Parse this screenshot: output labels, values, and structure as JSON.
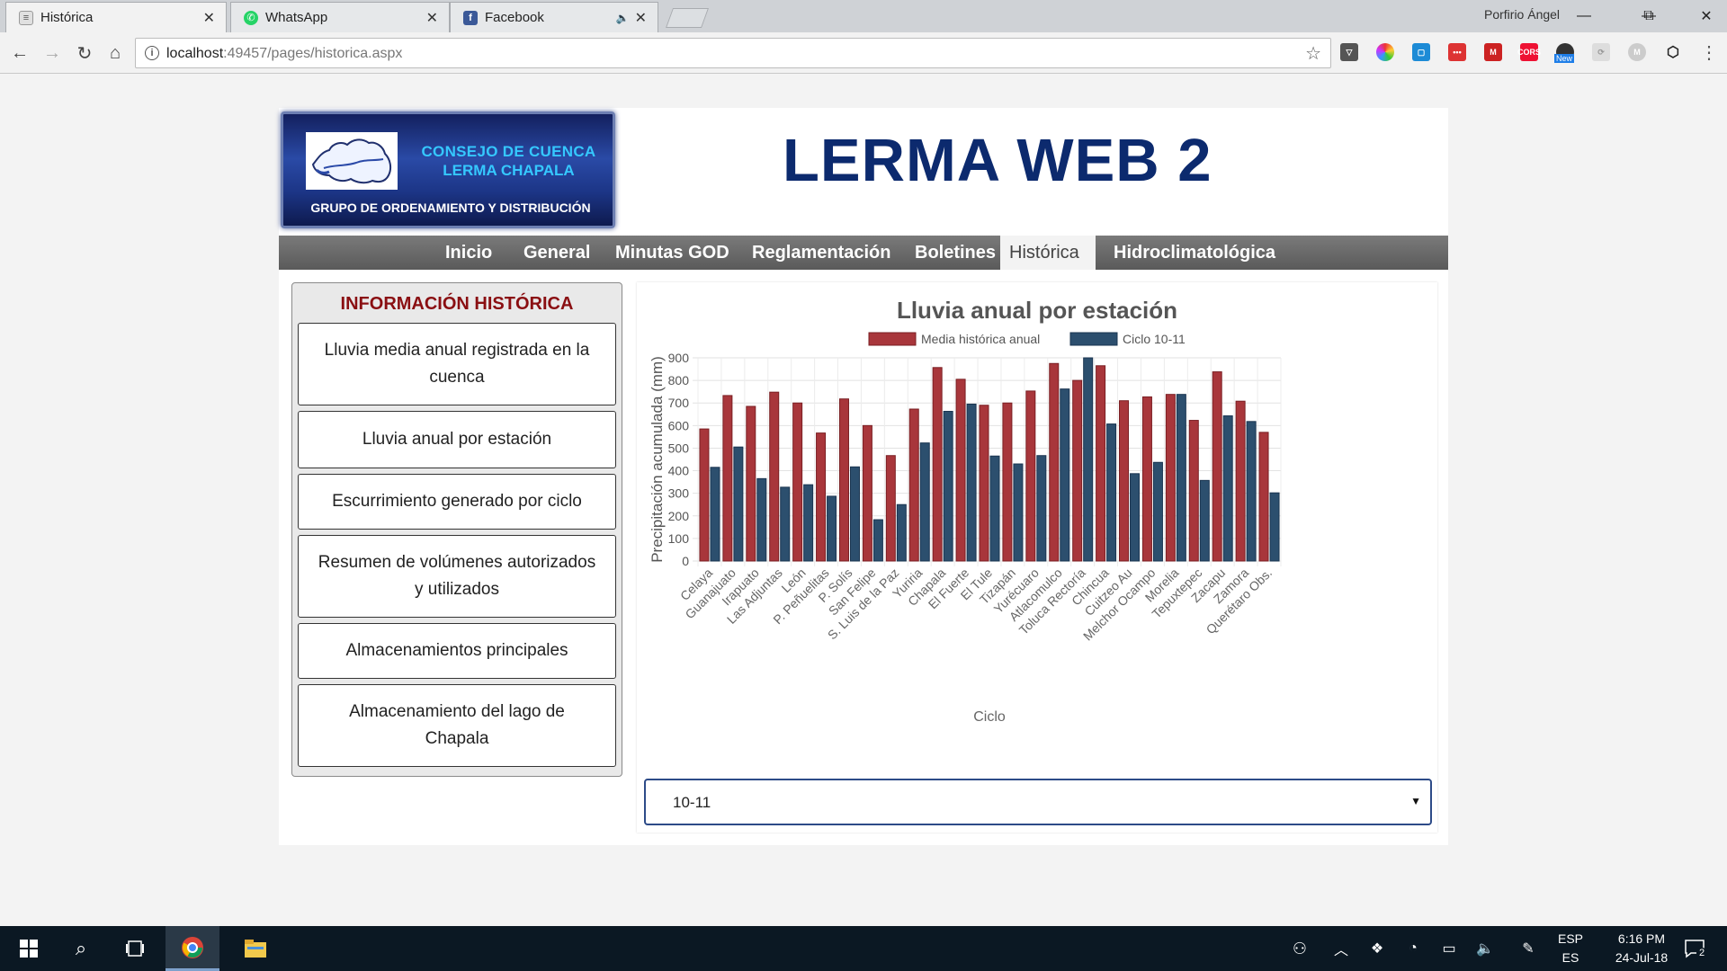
{
  "browser": {
    "tabs": [
      {
        "title": "Histórica",
        "icon": "page-icon",
        "active": true
      },
      {
        "title": "WhatsApp",
        "icon": "whatsapp-icon",
        "active": false
      },
      {
        "title": "Facebook",
        "icon": "facebook-icon",
        "active": false,
        "muted": true
      }
    ],
    "profile_name": "Porfirio Ángel",
    "url_host": "localhost",
    "url_rest": ":49457/pages/historica.aspx",
    "ext_new_badge": "New"
  },
  "header": {
    "logo_line1": "CONSEJO DE CUENCA",
    "logo_line2": "LERMA CHAPALA",
    "logo_line3": "GRUPO DE ORDENAMIENTO Y DISTRIBUCIÓN",
    "site_title": "LERMA WEB 2"
  },
  "menu": {
    "items": [
      "Inicio",
      "General",
      "Minutas GOD",
      "Reglamentación",
      "Boletines",
      "Histórica",
      "Hidroclimatológica"
    ],
    "active": "Histórica"
  },
  "sidebar": {
    "title": "INFORMACIÓN HISTÓRICA",
    "items": [
      "Lluvia media anual registrada en la cuenca",
      "Lluvia anual por estación",
      "Escurrimiento generado por ciclo",
      "Resumen de volúmenes autorizados y utilizados",
      "Almacenamientos principales",
      "Almacenamiento del lago de Chapala"
    ]
  },
  "chart_data": {
    "type": "bar",
    "title": "Lluvia anual por estación",
    "xlabel": "Ciclo",
    "ylabel": "Precipitación acumulada (mm)",
    "ylim": [
      0,
      900
    ],
    "yticks": [
      0,
      100,
      200,
      300,
      400,
      500,
      600,
      700,
      800,
      900
    ],
    "legend_position": "top",
    "grid": true,
    "categories": [
      "Celaya",
      "Guanajuato",
      "Irapuato",
      "Las Adjuntas",
      "León",
      "P. Peñuelitas",
      "P. Solís",
      "San Felipe",
      "S. Luis de la Paz",
      "Yuriria",
      "Chapala",
      "El Fuerte",
      "El Tule",
      "Tizapán",
      "Yurécuaro",
      "Atlacomulco",
      "Toluca Rectoría",
      "Chincua",
      "Cuitzeo Au",
      "Melchor Ocampo",
      "Morelia",
      "Tepuxtepec",
      "Zacapu",
      "Zamora",
      "Querétaro Obs."
    ],
    "series": [
      {
        "name": "Media histórica anual",
        "color": "#a8363b",
        "values": [
          585,
          733,
          685,
          748,
          700,
          567,
          718,
          600,
          467,
          673,
          857,
          805,
          690,
          700,
          753,
          875,
          800,
          865,
          710,
          727,
          738,
          623,
          838,
          708,
          570
        ]
      },
      {
        "name": "Ciclo 10-11",
        "color": "#2c4f6e",
        "values": [
          415,
          505,
          365,
          327,
          338,
          287,
          417,
          183,
          250,
          523,
          663,
          695,
          465,
          430,
          467,
          762,
          900,
          607,
          387,
          437,
          738,
          357,
          643,
          618,
          302
        ]
      }
    ]
  },
  "select": {
    "value": "10-11"
  },
  "taskbar": {
    "lang_top": "ESP",
    "lang_bottom": "ES",
    "time": "6:16 PM",
    "date": "24-Jul-18",
    "notifications": "2"
  }
}
